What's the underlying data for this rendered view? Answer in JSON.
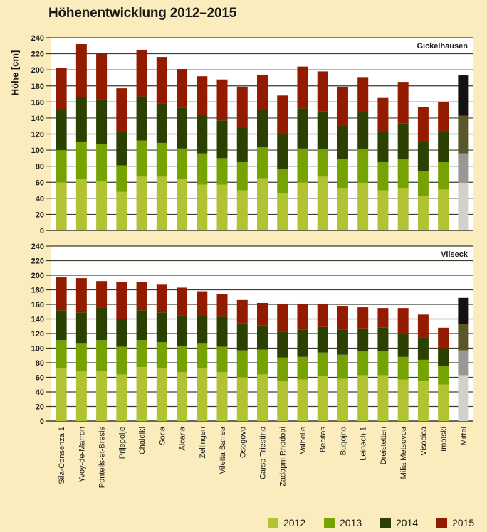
{
  "chart_data": {
    "type": "bar",
    "stacked": true,
    "title": "Höhenentwicklung 2012–2015",
    "ylabel": "Höhe [cm]",
    "xlabel": "",
    "ylim": [
      0,
      240
    ],
    "yticks": [
      0,
      20,
      40,
      60,
      80,
      100,
      120,
      140,
      160,
      180,
      200,
      220,
      240
    ],
    "grid": true,
    "legend_position": "bottom-right",
    "categories": [
      "Sila-Consenza 1",
      "Yvoy-de-Marron",
      "Ponteils-et-Bresis",
      "Prijepolje",
      "Chaldiki",
      "Soria",
      "Alcaria",
      "Zellingen",
      "Viletta Barrea",
      "Osogovo",
      "Carso Triestino",
      "Zadapni Rhodopi",
      "Valbelle",
      "Becitas",
      "Bugojno",
      "Leinach 1",
      "Dreistetten",
      "Milia Metsovoa",
      "Visocica",
      "Imotski",
      "Mittel"
    ],
    "legend": [
      {
        "name": "2012",
        "color": "#b1c232"
      },
      {
        "name": "2013",
        "color": "#76a302"
      },
      {
        "name": "2014",
        "color": "#2b4001"
      },
      {
        "name": "2015",
        "color": "#931c00"
      }
    ],
    "mean_colors": [
      "#d2d2cc",
      "#979893",
      "#595729",
      "#141210"
    ],
    "note": "Values are cumulative heights (cm) at end of each year; each stacked segment is the annual growth.",
    "panels": [
      {
        "name": "Gickelhausen",
        "series": [
          {
            "name": "2012",
            "values": [
              60,
              64,
              62,
              48,
              67,
              67,
              64,
              57,
              57,
              50,
              65,
              46,
              60,
              67,
              53,
              59,
              50,
              53,
              43,
              51,
              59
            ]
          },
          {
            "name": "2013",
            "values": [
              100,
              110,
              108,
              81,
              112,
              109,
              102,
              96,
              90,
              85,
              104,
              77,
              102,
              101,
              89,
              101,
              85,
              89,
              74,
              85,
              96
            ]
          },
          {
            "name": "2014",
            "values": [
              151,
              166,
              163,
              123,
              167,
              158,
              153,
              144,
              137,
              128,
              150,
              120,
              152,
              148,
              131,
              147,
              123,
              133,
              110,
              123,
              143
            ]
          },
          {
            "name": "2015",
            "values": [
              202,
              232,
              220,
              177,
              225,
              216,
              201,
              192,
              188,
              179,
              194,
              168,
              204,
              198,
              179,
              191,
              165,
              185,
              154,
              160,
              193
            ]
          }
        ]
      },
      {
        "name": "Vilseck",
        "series": [
          {
            "name": "2012",
            "values": [
              73,
              68,
              69,
              64,
              74,
              73,
              67,
              73,
              67,
              60,
              64,
              55,
              57,
              62,
              58,
              63,
              63,
              57,
              55,
              50,
              63
            ]
          },
          {
            "name": "2013",
            "values": [
              111,
              107,
              111,
              102,
              111,
              108,
              103,
              107,
              102,
              97,
              98,
              87,
              88,
              94,
              91,
              96,
              96,
              88,
              84,
              76,
              97
            ]
          },
          {
            "name": "2014",
            "values": [
              152,
              149,
              156,
              140,
              152,
              149,
              145,
              144,
              143,
              134,
              131,
              122,
              125,
              129,
              125,
              127,
              128,
              120,
              115,
              100,
              133
            ]
          },
          {
            "name": "2015",
            "values": [
              197,
              196,
              192,
              191,
              191,
              187,
              183,
              178,
              174,
              166,
              162,
              161,
              161,
              161,
              158,
              156,
              155,
              155,
              146,
              128,
              169
            ]
          }
        ]
      }
    ]
  }
}
